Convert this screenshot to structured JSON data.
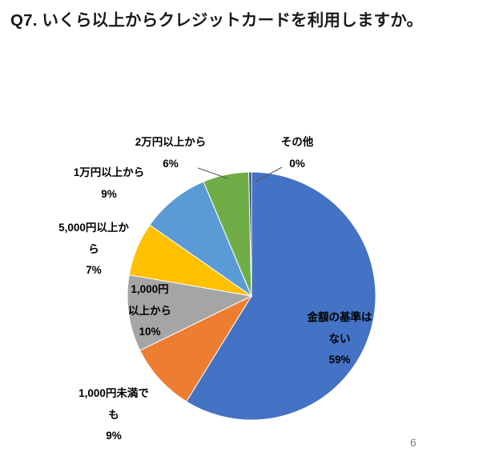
{
  "page": {
    "title": "Q7. いくら以上からクレジットカードを利用しますか。",
    "page_number": "6"
  },
  "chart_data": {
    "type": "pie",
    "title": "Q7. いくら以上からクレジットカードを利用しますか。",
    "legend": "none",
    "data_labels": "category-and-percent",
    "start_angle_deg": 0,
    "direction": "clockwise",
    "slices": [
      {
        "label": "金額の基準はない",
        "value": 59,
        "percent_label": "59%",
        "color": "#4472C4",
        "label_pos": "inside",
        "label_lines": [
          "金額の基準は",
          "ない",
          "59%"
        ]
      },
      {
        "label": "1,000円未満でも",
        "value": 9,
        "percent_label": "9%",
        "color": "#ED7D31",
        "label_pos": "outside",
        "label_lines": [
          "1,000円未満で",
          "も",
          "9%"
        ]
      },
      {
        "label": "1,000円以上から",
        "value": 10,
        "percent_label": "10%",
        "color": "#A5A5A5",
        "label_pos": "inside",
        "label_lines": [
          "1,000円",
          "以上から",
          "10%"
        ]
      },
      {
        "label": "5,000円以上から",
        "value": 7,
        "percent_label": "7%",
        "color": "#FFC000",
        "label_pos": "outside",
        "label_lines": [
          "5,000円以上か",
          "ら",
          "7%"
        ]
      },
      {
        "label": "1万円以上から",
        "value": 9,
        "percent_label": "9%",
        "color": "#5B9BD5",
        "label_pos": "outside",
        "label_lines": [
          "1万円以上から",
          "9%"
        ]
      },
      {
        "label": "2万円以上から",
        "value": 6,
        "percent_label": "6%",
        "color": "#70AD47",
        "label_pos": "outside",
        "label_lines": [
          "2万円以上から",
          "6%"
        ]
      },
      {
        "label": "その他",
        "value": 0,
        "percent_label": "0%",
        "color": "#264478",
        "label_pos": "outside",
        "label_lines": [
          "その他",
          "0%"
        ]
      }
    ]
  }
}
